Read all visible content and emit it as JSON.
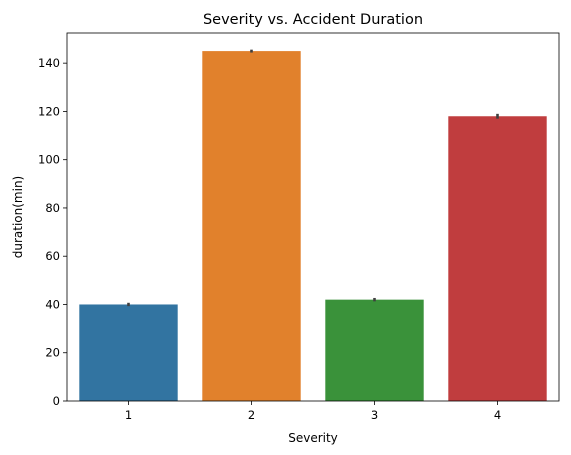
{
  "chart_data": {
    "type": "bar",
    "title": "Severity vs. Accident Duration",
    "xlabel": "Severity",
    "ylabel": "duration(min)",
    "categories": [
      "1",
      "2",
      "3",
      "4"
    ],
    "values": [
      40,
      145,
      42,
      118
    ],
    "error_low": [
      39.3,
      144.4,
      41.3,
      117.0
    ],
    "error_high": [
      40.7,
      145.6,
      42.7,
      119.0
    ],
    "colors": [
      "#3274a1",
      "#e1812c",
      "#3a923a",
      "#c03d3e"
    ],
    "error_color": "#3f3f3f",
    "ylim": [
      0,
      152.5
    ],
    "yticks": [
      0,
      20,
      40,
      60,
      80,
      100,
      120,
      140
    ],
    "grid": false,
    "legend": "none"
  }
}
